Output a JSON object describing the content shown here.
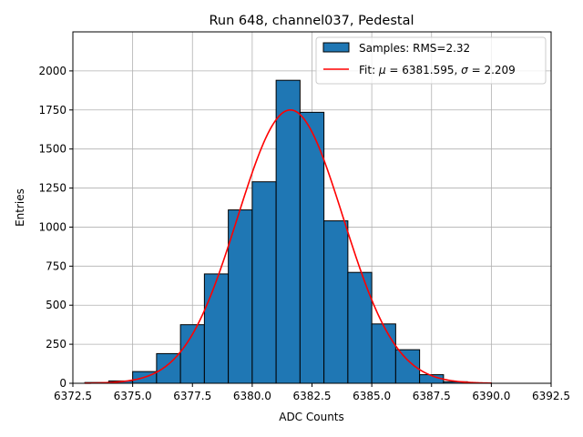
{
  "chart_data": {
    "type": "bar",
    "title": "Run 648, channel037, Pedestal",
    "xlabel": "ADC Counts",
    "ylabel": "Entries",
    "xlim": [
      6372.5,
      6392.5
    ],
    "ylim": [
      0,
      2250
    ],
    "xticks": [
      6372.5,
      6375.0,
      6377.5,
      6380.0,
      6382.5,
      6385.0,
      6387.5,
      6390.0,
      6392.5
    ],
    "xtick_labels": [
      "6372.5",
      "6375.0",
      "6377.5",
      "6380.0",
      "6382.5",
      "6385.0",
      "6387.5",
      "6390.0",
      "6392.5"
    ],
    "yticks": [
      0,
      250,
      500,
      750,
      1000,
      1250,
      1500,
      1750,
      2000
    ],
    "ytick_labels": [
      "0",
      "250",
      "500",
      "750",
      "1000",
      "1250",
      "1500",
      "1750",
      "2000"
    ],
    "grid": true,
    "legend_position": "top-right",
    "histogram": {
      "name": "Samples: RMS=2.32",
      "color": "#1f77b4",
      "edge_color": "#000000",
      "bins": [
        {
          "left": 6373,
          "right": 6374,
          "count": 5
        },
        {
          "left": 6374,
          "right": 6375,
          "count": 15
        },
        {
          "left": 6375,
          "right": 6376,
          "count": 75
        },
        {
          "left": 6376,
          "right": 6377,
          "count": 190
        },
        {
          "left": 6377,
          "right": 6378,
          "count": 375
        },
        {
          "left": 6378,
          "right": 6379,
          "count": 700
        },
        {
          "left": 6379,
          "right": 6380,
          "count": 1110
        },
        {
          "left": 6380,
          "right": 6381,
          "count": 1290
        },
        {
          "left": 6381,
          "right": 6382,
          "count": 1940
        },
        {
          "left": 6382,
          "right": 6383,
          "count": 1735
        },
        {
          "left": 6383,
          "right": 6384,
          "count": 1040
        },
        {
          "left": 6384,
          "right": 6385,
          "count": 710
        },
        {
          "left": 6385,
          "right": 6386,
          "count": 380
        },
        {
          "left": 6386,
          "right": 6387,
          "count": 215
        },
        {
          "left": 6387,
          "right": 6388,
          "count": 55
        },
        {
          "left": 6388,
          "right": 6389,
          "count": 10
        },
        {
          "left": 6389,
          "right": 6390,
          "count": 3
        }
      ]
    },
    "fit": {
      "name": "Fit: μ = 6381.595, σ = 2.209",
      "legend_prefix": "Fit: ",
      "mu_symbol": "μ",
      "mu_text": " = 6381.595, ",
      "sigma_symbol": "σ",
      "sigma_text": " = 2.209",
      "color": "#ff0000",
      "mu": 6381.595,
      "sigma": 2.209,
      "amplitude": 1750,
      "x_range": [
        6373,
        6390
      ]
    }
  }
}
